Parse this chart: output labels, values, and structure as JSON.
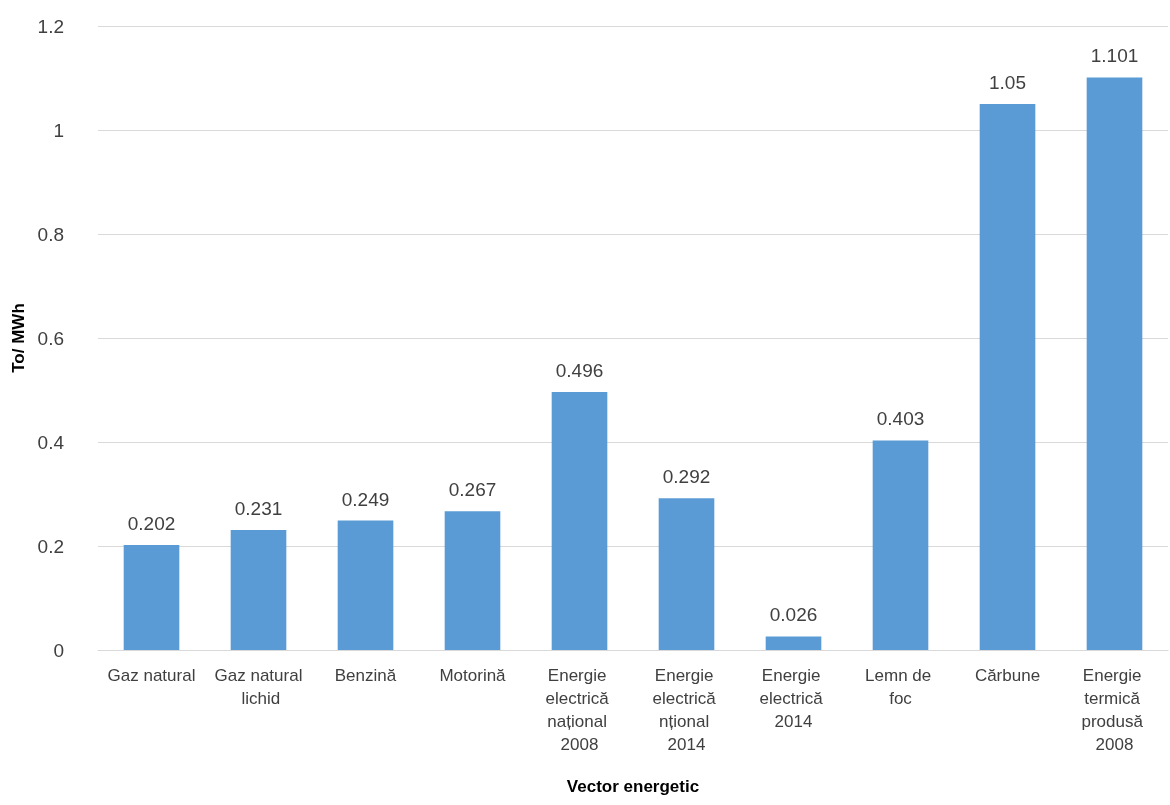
{
  "chart_data": {
    "type": "bar",
    "xlabel": "Vector energetic",
    "ylabel": "To/ MWh",
    "categories": [
      "Gaz natural",
      "Gaz natural lichid",
      "Benzină",
      "Motorină",
      "Energie electrică național 2008",
      "Energie electrică nțional 2014",
      "Energie electrică 2014",
      "Lemn de foc",
      "Cărbune",
      "Energie termică produsă 2008"
    ],
    "values": [
      0.202,
      0.231,
      0.249,
      0.267,
      0.496,
      0.292,
      0.026,
      0.403,
      1.05,
      1.101
    ],
    "color": "#5b9bd5",
    "ylim": [
      0,
      1.2
    ],
    "yticks": [
      0,
      0.2,
      0.4,
      0.6,
      0.8,
      1,
      1.2
    ],
    "grid": "y",
    "data_labels": true
  }
}
